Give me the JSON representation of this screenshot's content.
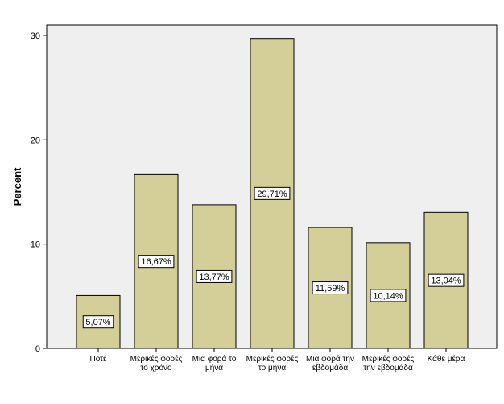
{
  "chart_data": {
    "type": "bar",
    "categories": [
      [
        "Ποτέ"
      ],
      [
        "Μερικές φορές",
        "το χρόνο"
      ],
      [
        "Μια φορά το",
        "μήνα"
      ],
      [
        "Μερικές φορές",
        "το μήνα"
      ],
      [
        "Μια φορά την",
        "εβδομάδα"
      ],
      [
        "Μερικές φορές",
        "την εβδομάδα"
      ],
      [
        "Κάθε μέρα"
      ]
    ],
    "values": [
      5.07,
      16.67,
      13.77,
      29.71,
      11.59,
      10.14,
      13.04
    ],
    "data_labels": [
      "5,07%",
      "16,67%",
      "13,77%",
      "29,71%",
      "11,59%",
      "10,14%",
      "13,04%"
    ],
    "title": "",
    "xlabel": "",
    "ylabel": "Percent",
    "ylim": [
      0,
      31.0
    ],
    "yticks": [
      0,
      10,
      20,
      30
    ],
    "grid": false,
    "colors": {
      "plot_background": "#efefef",
      "bar_fill": "#d4cf98",
      "bar_stroke": "#000000",
      "label_background": "#ffffff"
    }
  }
}
